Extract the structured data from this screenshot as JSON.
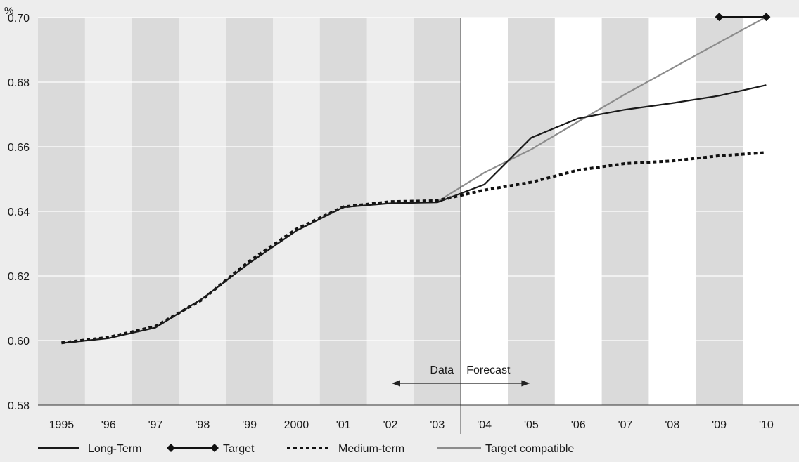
{
  "chart_data": {
    "type": "line",
    "unit_label": "%",
    "categories": [
      "1995",
      "'96",
      "'97",
      "'98",
      "'99",
      "2000",
      "'01",
      "'02",
      "'03",
      "'04",
      "'05",
      "'06",
      "'07",
      "'08",
      "'09",
      "'10"
    ],
    "ylim": [
      0.58,
      0.7
    ],
    "yticks": [
      "0.58",
      "0.60",
      "0.62",
      "0.64",
      "0.66",
      "0.68",
      "0.70"
    ],
    "ytick_values": [
      0.58,
      0.6,
      0.62,
      0.64,
      0.66,
      0.68,
      0.7
    ],
    "grid": true,
    "alternating_column_shading": true,
    "divider_between": [
      "'03",
      "'04"
    ],
    "annotation": {
      "left_text": "Data",
      "right_text": "Forecast",
      "arrow_from": "'02",
      "arrow_to": "'05"
    },
    "series": [
      {
        "name": "Long-Term",
        "style": "solid",
        "color": "#1a1a1a",
        "x": [
          "1995",
          "'96",
          "'97",
          "'98",
          "'99",
          "2000",
          "'01",
          "'02",
          "'03",
          "'04",
          "'05",
          "'06",
          "'07",
          "'08",
          "'09",
          "'10"
        ],
        "values": [
          0.5992,
          0.6007,
          0.604,
          0.613,
          0.624,
          0.634,
          0.6413,
          0.6425,
          0.6428,
          0.6483,
          0.6628,
          0.6688,
          0.6715,
          0.6735,
          0.6758,
          0.6791
        ]
      },
      {
        "name": "Target",
        "style": "diamond",
        "color": "#111111",
        "x": [
          "'09",
          "'10"
        ],
        "values": [
          0.7002,
          0.7002
        ]
      },
      {
        "name": "Medium-term",
        "style": "dotted",
        "color": "#111111",
        "x": [
          "1995",
          "'96",
          "'97",
          "'98",
          "'99",
          "2000",
          "'01",
          "'02",
          "'03",
          "'04",
          "'05",
          "'06",
          "'07",
          "'08",
          "'09",
          "'10"
        ],
        "values": [
          0.5993,
          0.601,
          0.6044,
          0.6127,
          0.6246,
          0.6345,
          0.6414,
          0.643,
          0.6433,
          0.6466,
          0.649,
          0.6528,
          0.6548,
          0.6556,
          0.6572,
          0.6582
        ]
      },
      {
        "name": "Target compatible",
        "style": "solid",
        "color": "#8c8c8c",
        "x": [
          "'03",
          "'04",
          "'05",
          "'06",
          "'07",
          "'08",
          "'09",
          "'10"
        ],
        "values": [
          0.643,
          0.652,
          0.6592,
          0.6678,
          0.6763,
          0.6843,
          0.6923,
          0.7002
        ]
      }
    ],
    "legend_position": "bottom-left"
  }
}
